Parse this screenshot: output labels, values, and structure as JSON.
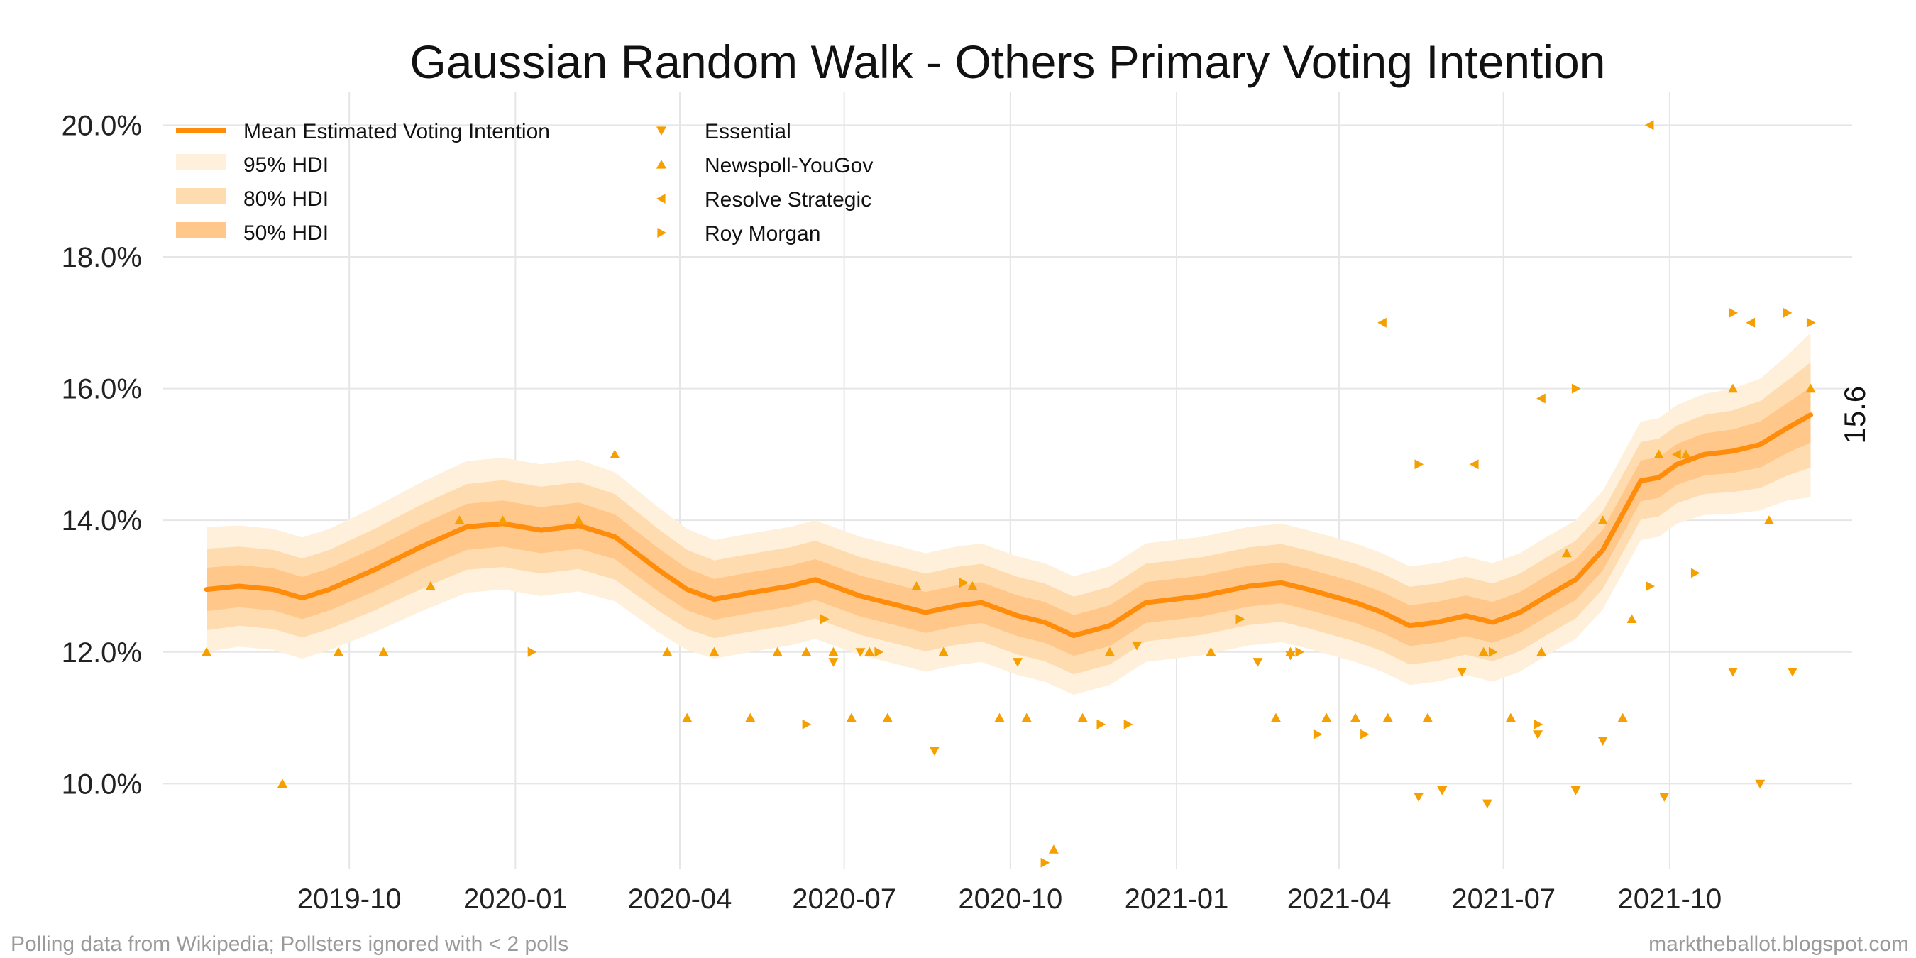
{
  "footer": {
    "left": "Polling data from Wikipedia; Pollsters ignored with < 2 polls",
    "right": "marktheballot.blogspot.com"
  },
  "chart_data": {
    "type": "line",
    "title": "Gaussian Random Walk - Others Primary Voting Intention",
    "xlabel": "",
    "ylabel": "",
    "x_start": "2019-07-14",
    "x_end": "2021-12-18",
    "xlim": [
      "2019-06-20",
      "2022-01-10"
    ],
    "ylim": [
      8.7,
      20.5
    ],
    "grid": true,
    "legend_position": "top-left",
    "x_ticks": [
      "2019-10",
      "2020-01",
      "2020-04",
      "2020-07",
      "2020-10",
      "2021-01",
      "2021-04",
      "2021-07",
      "2021-10"
    ],
    "y_ticks": [
      10.0,
      12.0,
      14.0,
      16.0,
      18.0,
      20.0
    ],
    "y_tick_labels": [
      "10.0%",
      "12.0%",
      "14.0%",
      "16.0%",
      "18.0%",
      "20.0%"
    ],
    "end_label": "15.6",
    "colors": {
      "line": "#ff8c0a",
      "hdi95": "#fff0dc",
      "hdi80": "#ffdcb0",
      "hdi50": "#ffc88a",
      "points": "#f5a000"
    },
    "legend": {
      "mean": "Mean Estimated Voting Intention",
      "hdi95": "95% HDI",
      "hdi80": "80% HDI",
      "hdi50": "50% HDI",
      "pollsters": [
        "Essential",
        "Newspoll-YouGov",
        "Resolve Strategic",
        "Roy Morgan"
      ]
    },
    "series": [
      {
        "name": "Mean Estimated Voting Intention",
        "dates": [
          "2019-07-14",
          "2019-08-01",
          "2019-08-20",
          "2019-09-05",
          "2019-09-20",
          "2019-10-15",
          "2019-11-10",
          "2019-12-05",
          "2019-12-25",
          "2020-01-15",
          "2020-02-05",
          "2020-02-25",
          "2020-03-20",
          "2020-04-05",
          "2020-04-20",
          "2020-05-10",
          "2020-06-01",
          "2020-06-15",
          "2020-07-10",
          "2020-08-01",
          "2020-08-15",
          "2020-09-01",
          "2020-09-15",
          "2020-10-05",
          "2020-10-20",
          "2020-11-05",
          "2020-11-25",
          "2020-12-15",
          "2021-01-15",
          "2021-02-10",
          "2021-02-28",
          "2021-03-15",
          "2021-04-10",
          "2021-04-25",
          "2021-05-10",
          "2021-05-25",
          "2021-06-10",
          "2021-06-25",
          "2021-07-10",
          "2021-07-25",
          "2021-08-10",
          "2021-08-25",
          "2021-09-05",
          "2021-09-15",
          "2021-09-25",
          "2021-10-05",
          "2021-10-20",
          "2021-11-05",
          "2021-11-20",
          "2021-12-05",
          "2021-12-18"
        ],
        "mean": [
          12.95,
          13.0,
          12.95,
          12.82,
          12.95,
          13.25,
          13.6,
          13.9,
          13.95,
          13.85,
          13.92,
          13.75,
          13.25,
          12.95,
          12.8,
          12.9,
          13.0,
          13.1,
          12.85,
          12.7,
          12.6,
          12.7,
          12.75,
          12.55,
          12.45,
          12.25,
          12.4,
          12.75,
          12.85,
          13.0,
          13.05,
          12.95,
          12.75,
          12.6,
          12.4,
          12.45,
          12.55,
          12.45,
          12.6,
          12.85,
          13.1,
          13.55,
          14.1,
          14.6,
          14.65,
          14.85,
          15.0,
          15.05,
          15.15,
          15.4,
          15.6
        ],
        "hdi50": [
          0.33,
          0.32,
          0.32,
          0.32,
          0.32,
          0.33,
          0.34,
          0.35,
          0.35,
          0.35,
          0.35,
          0.34,
          0.33,
          0.32,
          0.31,
          0.31,
          0.31,
          0.31,
          0.31,
          0.31,
          0.31,
          0.31,
          0.31,
          0.31,
          0.31,
          0.31,
          0.31,
          0.31,
          0.31,
          0.31,
          0.31,
          0.31,
          0.31,
          0.31,
          0.31,
          0.31,
          0.31,
          0.31,
          0.31,
          0.31,
          0.31,
          0.31,
          0.31,
          0.31,
          0.31,
          0.31,
          0.32,
          0.33,
          0.35,
          0.38,
          0.42
        ],
        "hdi80": [
          0.62,
          0.6,
          0.6,
          0.6,
          0.6,
          0.62,
          0.64,
          0.65,
          0.66,
          0.66,
          0.66,
          0.65,
          0.62,
          0.6,
          0.59,
          0.59,
          0.59,
          0.59,
          0.59,
          0.59,
          0.59,
          0.59,
          0.59,
          0.59,
          0.59,
          0.59,
          0.59,
          0.59,
          0.59,
          0.59,
          0.59,
          0.59,
          0.59,
          0.59,
          0.59,
          0.59,
          0.59,
          0.59,
          0.59,
          0.59,
          0.59,
          0.59,
          0.59,
          0.59,
          0.59,
          0.59,
          0.6,
          0.62,
          0.66,
          0.72,
          0.8
        ],
        "hdi95": [
          0.95,
          0.92,
          0.92,
          0.92,
          0.92,
          0.95,
          0.98,
          1.0,
          1.0,
          1.0,
          1.0,
          0.98,
          0.95,
          0.92,
          0.9,
          0.9,
          0.9,
          0.9,
          0.9,
          0.9,
          0.9,
          0.9,
          0.9,
          0.9,
          0.9,
          0.9,
          0.9,
          0.9,
          0.9,
          0.9,
          0.9,
          0.9,
          0.9,
          0.9,
          0.9,
          0.9,
          0.9,
          0.9,
          0.9,
          0.9,
          0.9,
          0.9,
          0.9,
          0.9,
          0.9,
          0.9,
          0.92,
          0.95,
          1.0,
          1.1,
          1.25
        ]
      }
    ],
    "polls": [
      {
        "pollster": "Essential",
        "points": [
          [
            "2020-06-25",
            11.85
          ],
          [
            "2020-07-10",
            12.0
          ],
          [
            "2020-08-20",
            10.5
          ],
          [
            "2020-10-05",
            11.85
          ],
          [
            "2020-12-10",
            12.1
          ],
          [
            "2021-02-15",
            11.85
          ],
          [
            "2021-03-05",
            11.95
          ],
          [
            "2021-05-15",
            9.8
          ],
          [
            "2021-05-28",
            9.9
          ],
          [
            "2021-06-08",
            11.7
          ],
          [
            "2021-06-22",
            9.7
          ],
          [
            "2021-07-20",
            10.75
          ],
          [
            "2021-08-10",
            9.9
          ],
          [
            "2021-08-25",
            10.65
          ],
          [
            "2021-09-28",
            9.8
          ],
          [
            "2021-11-05",
            11.7
          ],
          [
            "2021-11-20",
            10.0
          ],
          [
            "2021-12-08",
            11.7
          ]
        ]
      },
      {
        "pollster": "Newspoll-YouGov",
        "points": [
          [
            "2019-07-14",
            12.0
          ],
          [
            "2019-08-25",
            10.0
          ],
          [
            "2019-09-25",
            12.0
          ],
          [
            "2019-10-20",
            12.0
          ],
          [
            "2019-11-15",
            13.0
          ],
          [
            "2019-12-01",
            14.0
          ],
          [
            "2019-12-25",
            14.0
          ],
          [
            "2020-02-05",
            14.0
          ],
          [
            "2020-02-25",
            15.0
          ],
          [
            "2020-03-25",
            12.0
          ],
          [
            "2020-04-05",
            11.0
          ],
          [
            "2020-04-20",
            12.0
          ],
          [
            "2020-05-10",
            11.0
          ],
          [
            "2020-05-25",
            12.0
          ],
          [
            "2020-06-10",
            12.0
          ],
          [
            "2020-06-25",
            12.0
          ],
          [
            "2020-07-05",
            11.0
          ],
          [
            "2020-07-15",
            12.0
          ],
          [
            "2020-07-25",
            11.0
          ],
          [
            "2020-08-10",
            13.0
          ],
          [
            "2020-08-25",
            12.0
          ],
          [
            "2020-09-10",
            13.0
          ],
          [
            "2020-09-25",
            11.0
          ],
          [
            "2020-10-10",
            11.0
          ],
          [
            "2020-10-25",
            9.0
          ],
          [
            "2020-11-10",
            11.0
          ],
          [
            "2020-11-25",
            12.0
          ],
          [
            "2021-01-20",
            12.0
          ],
          [
            "2021-02-25",
            11.0
          ],
          [
            "2021-03-05",
            12.0
          ],
          [
            "2021-03-25",
            11.0
          ],
          [
            "2021-04-10",
            11.0
          ],
          [
            "2021-04-28",
            11.0
          ],
          [
            "2021-05-20",
            11.0
          ],
          [
            "2021-06-20",
            12.0
          ],
          [
            "2021-07-05",
            11.0
          ],
          [
            "2021-07-22",
            12.0
          ],
          [
            "2021-08-05",
            13.5
          ],
          [
            "2021-08-25",
            14.0
          ],
          [
            "2021-09-05",
            11.0
          ],
          [
            "2021-09-10",
            12.5
          ],
          [
            "2021-09-25",
            15.0
          ],
          [
            "2021-10-10",
            15.0
          ],
          [
            "2021-11-05",
            16.0
          ],
          [
            "2021-11-25",
            14.0
          ],
          [
            "2021-12-18",
            16.0
          ]
        ]
      },
      {
        "pollster": "Resolve Strategic",
        "points": [
          [
            "2021-04-25",
            17.0
          ],
          [
            "2021-06-15",
            14.85
          ],
          [
            "2021-07-22",
            15.85
          ],
          [
            "2021-09-20",
            20.0
          ],
          [
            "2021-10-05",
            15.0
          ],
          [
            "2021-11-15",
            17.0
          ]
        ]
      },
      {
        "pollster": "Roy Morgan",
        "points": [
          [
            "2020-01-10",
            12.0
          ],
          [
            "2020-06-10",
            10.9
          ],
          [
            "2020-06-20",
            12.5
          ],
          [
            "2020-07-20",
            12.0
          ],
          [
            "2020-09-05",
            13.05
          ],
          [
            "2020-10-20",
            8.8
          ],
          [
            "2020-11-20",
            10.9
          ],
          [
            "2020-12-05",
            10.9
          ],
          [
            "2021-02-05",
            12.5
          ],
          [
            "2021-03-10",
            12.0
          ],
          [
            "2021-03-20",
            10.75
          ],
          [
            "2021-04-15",
            10.75
          ],
          [
            "2021-05-15",
            14.85
          ],
          [
            "2021-06-25",
            12.0
          ],
          [
            "2021-07-20",
            10.9
          ],
          [
            "2021-08-10",
            16.0
          ],
          [
            "2021-09-20",
            13.0
          ],
          [
            "2021-10-15",
            13.2
          ],
          [
            "2021-11-05",
            17.15
          ],
          [
            "2021-12-05",
            17.15
          ],
          [
            "2021-12-18",
            17.0
          ]
        ]
      }
    ]
  }
}
